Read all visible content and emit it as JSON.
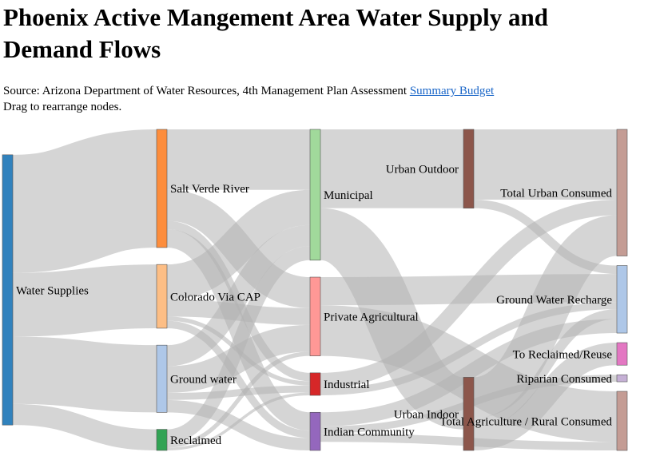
{
  "header": {
    "title": "Phoenix Active Mangement Area Water Supply and Demand Flows",
    "source_prefix": "Source: Arizona Department of Water Resources, 4th Management Plan Assessment ",
    "source_link": "Summary Budget",
    "hint": "Drag to rearrange nodes."
  },
  "colors": {
    "link": "#b3b3b3",
    "node_stroke": "#555555"
  },
  "sankey": {
    "nodes": [
      {
        "id": "supplies",
        "label": "Water Supplies",
        "column": 0,
        "color": "#3182bd"
      },
      {
        "id": "saltverde",
        "label": "Salt Verde River",
        "column": 1,
        "color": "#fd8d3c"
      },
      {
        "id": "cap",
        "label": "Colorado Via CAP",
        "column": 1,
        "color": "#fdbe85"
      },
      {
        "id": "groundwater",
        "label": "Ground water",
        "column": 1,
        "color": "#aec7e8"
      },
      {
        "id": "reclaimed",
        "label": "Reclaimed",
        "column": 1,
        "color": "#31a354"
      },
      {
        "id": "municipal",
        "label": "Municipal",
        "column": 2,
        "color": "#a1d99b"
      },
      {
        "id": "privag",
        "label": "Private Agricultural",
        "column": 2,
        "color": "#ff9896"
      },
      {
        "id": "industrial",
        "label": "Industrial",
        "column": 2,
        "color": "#d62728"
      },
      {
        "id": "indian",
        "label": "Indian Community",
        "column": 2,
        "color": "#9467bd"
      },
      {
        "id": "urbanout",
        "label": "Urban Outdoor",
        "column": 3,
        "color": "#8c564b"
      },
      {
        "id": "urbanin",
        "label": "Urban Indoor",
        "column": 3,
        "color": "#8c564b"
      },
      {
        "id": "urbancons",
        "label": "Total Urban Consumed",
        "column": 4,
        "color": "#c49c94"
      },
      {
        "id": "gwrecharge",
        "label": "Ground Water Recharge",
        "column": 4,
        "color": "#aec7e8"
      },
      {
        "id": "toreclaim",
        "label": "To Reclaimed/Reuse",
        "column": 4,
        "color": "#e377c2"
      },
      {
        "id": "riparian",
        "label": "Riparian Consumed",
        "column": 4,
        "color": "#c5b0d5"
      },
      {
        "id": "agcons",
        "label": "Total Agriculture / Rural Consumed",
        "column": 4,
        "color": "#c49c94"
      }
    ],
    "links": [
      {
        "source": "supplies",
        "target": "saltverde",
        "value": 840
      },
      {
        "source": "supplies",
        "target": "cap",
        "value": 453
      },
      {
        "source": "supplies",
        "target": "groundwater",
        "value": 478
      },
      {
        "source": "supplies",
        "target": "reclaimed",
        "value": 150
      },
      {
        "source": "saltverde",
        "target": "municipal",
        "value": 430
      },
      {
        "source": "saltverde",
        "target": "privag",
        "value": 220
      },
      {
        "source": "saltverde",
        "target": "industrial",
        "value": 60
      },
      {
        "source": "saltverde",
        "target": "indian",
        "value": 130
      },
      {
        "source": "cap",
        "target": "municipal",
        "value": 250
      },
      {
        "source": "cap",
        "target": "privag",
        "value": 120
      },
      {
        "source": "cap",
        "target": "industrial",
        "value": 30
      },
      {
        "source": "cap",
        "target": "indian",
        "value": 53
      },
      {
        "source": "groundwater",
        "target": "municipal",
        "value": 150
      },
      {
        "source": "groundwater",
        "target": "privag",
        "value": 190
      },
      {
        "source": "groundwater",
        "target": "industrial",
        "value": 50
      },
      {
        "source": "groundwater",
        "target": "indian",
        "value": 88
      },
      {
        "source": "reclaimed",
        "target": "municipal",
        "value": 100
      },
      {
        "source": "reclaimed",
        "target": "privag",
        "value": 30
      },
      {
        "source": "reclaimed",
        "target": "industrial",
        "value": 20
      },
      {
        "source": "municipal",
        "target": "urbanout",
        "value": 560
      },
      {
        "source": "municipal",
        "target": "urbanin",
        "value": 370
      },
      {
        "source": "privag",
        "target": "gwrecharge",
        "value": 200
      },
      {
        "source": "privag",
        "target": "agcons",
        "value": 360
      },
      {
        "source": "industrial",
        "target": "urbancons",
        "value": 110
      },
      {
        "source": "industrial",
        "target": "gwrecharge",
        "value": 50
      },
      {
        "source": "indian",
        "target": "gwrecharge",
        "value": 100
      },
      {
        "source": "indian",
        "target": "riparian",
        "value": 50
      },
      {
        "source": "indian",
        "target": "agcons",
        "value": 60
      },
      {
        "source": "urbanout",
        "target": "urbancons",
        "value": 500
      },
      {
        "source": "urbanout",
        "target": "gwrecharge",
        "value": 60
      },
      {
        "source": "urbanin",
        "target": "urbancons",
        "value": 290
      },
      {
        "source": "urbanin",
        "target": "gwrecharge",
        "value": 70
      },
      {
        "source": "urbanin",
        "target": "toreclaim",
        "value": 160
      }
    ]
  }
}
